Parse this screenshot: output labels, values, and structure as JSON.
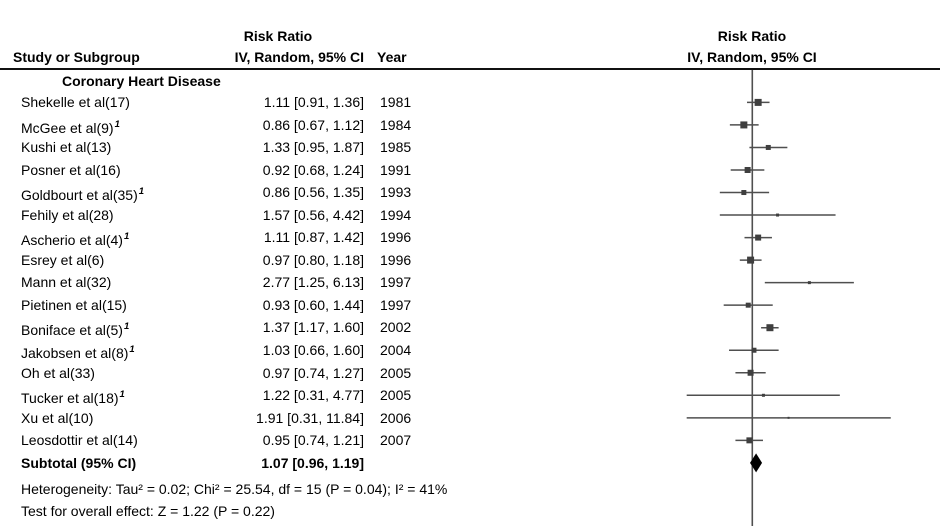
{
  "header": {
    "left_effect_line1": "Risk Ratio",
    "left_effect_line2": "IV, Random, 95% CI",
    "col_study": "Study or Subgroup",
    "col_year": "Year",
    "right_line1": "Risk Ratio",
    "right_line2": "IV, Random, 95% CI"
  },
  "colors": {
    "text": "#000000",
    "rule": "#111111",
    "axis_line": "#4f4f4f",
    "ci_line": "#4f4f4f",
    "marker": "#3f3f3f",
    "diamond": "#000000"
  },
  "chart_data": {
    "type": "forest",
    "effect_measure": "Risk Ratio",
    "model": "IV, Random, 95% CI",
    "scale": "log10",
    "null_line": 1,
    "subgroup": "Coronary Heart Disease",
    "studies": [
      {
        "study": "Shekelle et al(17)",
        "footnote_mark": "",
        "rr": 1.11,
        "ci_low": 0.91,
        "ci_high": 1.36,
        "ci_text": "1.11 [0.91, 1.36]",
        "year": "1981",
        "marker_px": 7
      },
      {
        "study": "McGee et al(9)",
        "footnote_mark": "1",
        "rr": 0.86,
        "ci_low": 0.67,
        "ci_high": 1.12,
        "ci_text": "0.86 [0.67, 1.12]",
        "year": "1984",
        "marker_px": 7
      },
      {
        "study": "Kushi et al(13)",
        "footnote_mark": "",
        "rr": 1.33,
        "ci_low": 0.95,
        "ci_high": 1.87,
        "ci_text": "1.33 [0.95, 1.87]",
        "year": "1985",
        "marker_px": 5
      },
      {
        "study": "Posner et al(16)",
        "footnote_mark": "",
        "rr": 0.92,
        "ci_low": 0.68,
        "ci_high": 1.24,
        "ci_text": "0.92 [0.68, 1.24]",
        "year": "1991",
        "marker_px": 6
      },
      {
        "study": "Goldbourt et al(35)",
        "footnote_mark": "1",
        "rr": 0.86,
        "ci_low": 0.56,
        "ci_high": 1.35,
        "ci_text": "0.86 [0.56, 1.35]",
        "year": "1993",
        "marker_px": 5
      },
      {
        "study": "Fehily et al(28)",
        "footnote_mark": "",
        "rr": 1.57,
        "ci_low": 0.56,
        "ci_high": 4.42,
        "ci_text": "1.57 [0.56, 4.42]",
        "year": "1994",
        "marker_px": 3
      },
      {
        "study": "Ascherio et al(4)",
        "footnote_mark": "1",
        "rr": 1.11,
        "ci_low": 0.87,
        "ci_high": 1.42,
        "ci_text": "1.11 [0.87, 1.42]",
        "year": "1996",
        "marker_px": 6
      },
      {
        "study": "Esrey et al(6)",
        "footnote_mark": "",
        "rr": 0.97,
        "ci_low": 0.8,
        "ci_high": 1.18,
        "ci_text": "0.97 [0.80, 1.18]",
        "year": "1996",
        "marker_px": 7
      },
      {
        "study": "Mann et al(32)",
        "footnote_mark": "",
        "rr": 2.77,
        "ci_low": 1.25,
        "ci_high": 6.13,
        "ci_text": "2.77 [1.25, 6.13]",
        "year": "1997",
        "marker_px": 3
      },
      {
        "study": "Pietinen et al(15)",
        "footnote_mark": "",
        "rr": 0.93,
        "ci_low": 0.6,
        "ci_high": 1.44,
        "ci_text": "0.93 [0.60, 1.44]",
        "year": "1997",
        "marker_px": 5
      },
      {
        "study": "Boniface et al(5)",
        "footnote_mark": "1",
        "rr": 1.37,
        "ci_low": 1.17,
        "ci_high": 1.6,
        "ci_text": "1.37 [1.17, 1.60]",
        "year": "2002",
        "marker_px": 7
      },
      {
        "study": "Jakobsen et al(8)",
        "footnote_mark": "1",
        "rr": 1.03,
        "ci_low": 0.66,
        "ci_high": 1.6,
        "ci_text": "1.03 [0.66, 1.60]",
        "year": "2004",
        "marker_px": 5
      },
      {
        "study": "Oh et al(33)",
        "footnote_mark": "",
        "rr": 0.97,
        "ci_low": 0.74,
        "ci_high": 1.27,
        "ci_text": "0.97 [0.74, 1.27]",
        "year": "2005",
        "marker_px": 6
      },
      {
        "study": "Tucker et al(18)",
        "footnote_mark": "1",
        "rr": 1.22,
        "ci_low": 0.31,
        "ci_high": 4.77,
        "ci_text": "1.22 [0.31, 4.77]",
        "year": "2005",
        "marker_px": 3
      },
      {
        "study": "Xu et al(10)",
        "footnote_mark": "",
        "rr": 1.91,
        "ci_low": 0.31,
        "ci_high": 11.84,
        "ci_text": "1.91 [0.31, 11.84]",
        "year": "2006",
        "marker_px": 2
      },
      {
        "study": "Leosdottir et al(14)",
        "footnote_mark": "",
        "rr": 0.95,
        "ci_low": 0.74,
        "ci_high": 1.21,
        "ci_text": "0.95 [0.74, 1.21]",
        "year": "2007",
        "marker_px": 6
      }
    ],
    "subtotal": {
      "label": "Subtotal (95% CI)",
      "rr": 1.07,
      "ci_low": 0.96,
      "ci_high": 1.19,
      "ci_text": "1.07 [0.96, 1.19]"
    },
    "heterogeneity": "Heterogeneity: Tau² = 0.02; Chi² = 25.54, df = 15 (P = 0.04); I² = 41%",
    "overall_effect": "Test for overall effect: Z = 1.22 (P = 0.22)"
  }
}
